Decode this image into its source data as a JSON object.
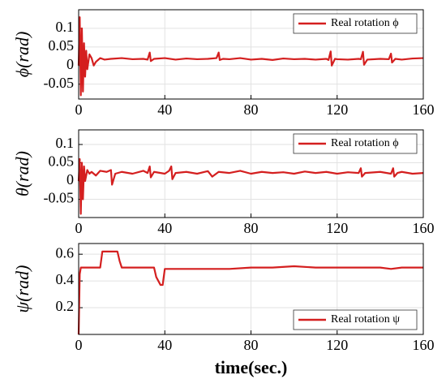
{
  "chart_data": [
    {
      "type": "line",
      "ylabel": "ϕ(rad)",
      "x": [
        0,
        0.5,
        1,
        1.5,
        2,
        2.5,
        3,
        3.5,
        4,
        5,
        6,
        7,
        8,
        9,
        10,
        12,
        15,
        20,
        25,
        30,
        32,
        33,
        33.5,
        35,
        40,
        45,
        50,
        55,
        60,
        64,
        65,
        65.5,
        67,
        70,
        75,
        80,
        85,
        90,
        95,
        100,
        105,
        110,
        115,
        116,
        117,
        117.5,
        119,
        120,
        125,
        130,
        131,
        132,
        132.5,
        134,
        140,
        144,
        145,
        145.5,
        147,
        150,
        155,
        160
      ],
      "series": [
        {
          "name": "Real rotation ϕ",
          "color": "#d41f1f",
          "values": [
            0,
            0.13,
            -0.08,
            0.1,
            -0.07,
            0.06,
            -0.03,
            0.04,
            -0.01,
            0.03,
            0.02,
            0.0,
            0.01,
            0.015,
            0.02,
            0.016,
            0.018,
            0.02,
            0.017,
            0.018,
            0.016,
            0.035,
            0.012,
            0.018,
            0.02,
            0.016,
            0.019,
            0.017,
            0.018,
            0.02,
            0.035,
            0.015,
            0.018,
            0.017,
            0.02,
            0.016,
            0.018,
            0.015,
            0.019,
            0.017,
            0.018,
            0.016,
            0.018,
            0.015,
            0.038,
            0.0,
            0.018,
            0.017,
            0.016,
            0.018,
            0.017,
            0.037,
            0.002,
            0.016,
            0.018,
            0.017,
            0.032,
            0.008,
            0.018,
            0.016,
            0.019,
            0.02
          ]
        }
      ],
      "xlim": [
        0,
        160
      ],
      "xticks": [
        0,
        40,
        80,
        120,
        160
      ],
      "ylim": [
        -0.09,
        0.15
      ],
      "yticks": [
        -0.05,
        0,
        0.05,
        0.1
      ],
      "grid": true,
      "legend": "upper right"
    },
    {
      "type": "line",
      "ylabel": "θ(rad)",
      "x": [
        0,
        0.5,
        1,
        1.5,
        2,
        2.5,
        3,
        4,
        5,
        6,
        8,
        10,
        13,
        15,
        15.5,
        17,
        20,
        25,
        30,
        32,
        33,
        33.5,
        35,
        40,
        42,
        43,
        43.5,
        45,
        50,
        55,
        60,
        62,
        65,
        70,
        75,
        80,
        85,
        90,
        95,
        100,
        105,
        110,
        115,
        120,
        125,
        130,
        131,
        131.5,
        133,
        140,
        145,
        146,
        146.5,
        148,
        150,
        155,
        160
      ],
      "series": [
        {
          "name": "Real rotation ϕ",
          "color": "#d41f1f",
          "values": [
            0,
            0.06,
            -0.09,
            0.05,
            -0.05,
            0.04,
            0.0,
            0.03,
            0.02,
            0.025,
            0.015,
            0.028,
            0.025,
            0.03,
            -0.01,
            0.02,
            0.025,
            0.02,
            0.028,
            0.022,
            0.04,
            0.01,
            0.025,
            0.02,
            0.028,
            0.04,
            0.005,
            0.022,
            0.025,
            0.02,
            0.027,
            0.012,
            0.025,
            0.022,
            0.028,
            0.02,
            0.025,
            0.022,
            0.024,
            0.02,
            0.026,
            0.022,
            0.025,
            0.02,
            0.024,
            0.022,
            0.035,
            0.012,
            0.022,
            0.025,
            0.02,
            0.035,
            0.012,
            0.022,
            0.025,
            0.02,
            0.022
          ]
        }
      ],
      "xlim": [
        0,
        160
      ],
      "xticks": [
        0,
        40,
        80,
        120,
        160
      ],
      "ylim": [
        -0.1,
        0.14
      ],
      "yticks": [
        -0.05,
        0,
        0.05,
        0.1
      ],
      "grid": true,
      "legend": "upper right"
    },
    {
      "type": "line",
      "ylabel": "ψ(rad)",
      "xlabel": "time(sec.)",
      "x": [
        0,
        0.5,
        1,
        3,
        10,
        11,
        18,
        19,
        20,
        25,
        30,
        35,
        36,
        38,
        39,
        40,
        50,
        60,
        70,
        80,
        90,
        100,
        110,
        120,
        130,
        140,
        145,
        150,
        160
      ],
      "series": [
        {
          "name": "Real rotation ψ",
          "color": "#d41f1f",
          "values": [
            0,
            0.45,
            0.5,
            0.5,
            0.5,
            0.62,
            0.62,
            0.55,
            0.5,
            0.5,
            0.5,
            0.5,
            0.43,
            0.37,
            0.37,
            0.49,
            0.49,
            0.49,
            0.49,
            0.5,
            0.5,
            0.51,
            0.5,
            0.5,
            0.5,
            0.5,
            0.49,
            0.5,
            0.5
          ]
        }
      ],
      "xlim": [
        0,
        160
      ],
      "xticks": [
        0,
        40,
        80,
        120,
        160
      ],
      "ylim": [
        0,
        0.68
      ],
      "yticks": [
        0.2,
        0.4,
        0.6
      ],
      "grid": true,
      "legend": "lower right"
    }
  ]
}
